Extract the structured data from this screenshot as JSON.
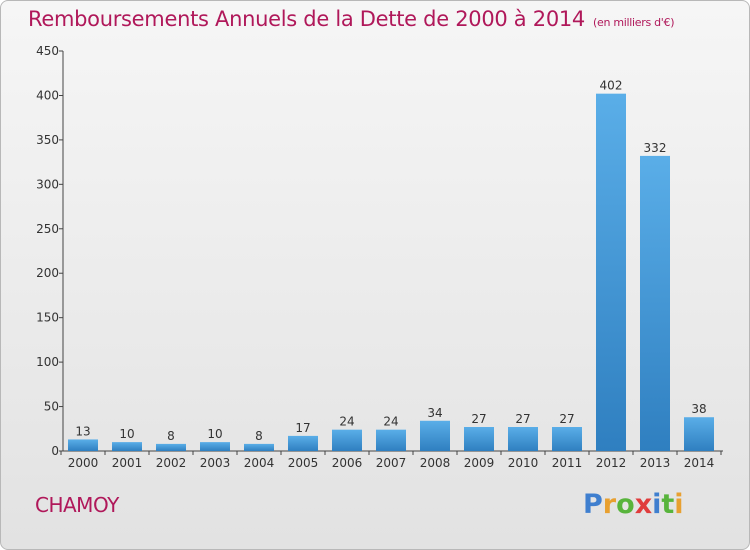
{
  "title": "Remboursements Annuels de la Dette de 2000 à 2014",
  "unit": "(en milliers d'€)",
  "city": "CHAMOY",
  "logo": {
    "letters": [
      "P",
      "r",
      "o",
      "x",
      "i",
      "t",
      "i"
    ],
    "colors": [
      "#3f7fcf",
      "#e8a030",
      "#58b43c",
      "#e03c3c",
      "#3f7fcf",
      "#58b43c",
      "#e8a030"
    ]
  },
  "colors": {
    "bar_top": "#5aaee8",
    "bar_bottom": "#2f7fc0",
    "title": "#b0185a",
    "grid": "#d0d0d0"
  },
  "chart_data": {
    "type": "bar",
    "categories": [
      "2000",
      "2001",
      "2002",
      "2003",
      "2004",
      "2005",
      "2006",
      "2007",
      "2008",
      "2009",
      "2010",
      "2011",
      "2012",
      "2013",
      "2014"
    ],
    "values": [
      13,
      10,
      8,
      10,
      8,
      17,
      24,
      24,
      34,
      27,
      27,
      27,
      402,
      332,
      38
    ],
    "yticks": [
      0,
      50,
      100,
      150,
      200,
      250,
      300,
      350,
      400,
      450
    ],
    "ylim": [
      0,
      450
    ],
    "grid": false
  }
}
